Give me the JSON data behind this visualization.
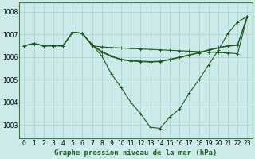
{
  "title": "Graphe pression niveau de la mer (hPa)",
  "bg_color": "#cceaea",
  "grid_color": "#aacece",
  "line_color": "#1a5c1a",
  "xlim": [
    -0.5,
    23.5
  ],
  "ylim": [
    1002.4,
    1008.4
  ],
  "yticks": [
    1003,
    1004,
    1005,
    1006,
    1007,
    1008
  ],
  "xticks": [
    0,
    1,
    2,
    3,
    4,
    5,
    6,
    7,
    8,
    9,
    10,
    11,
    12,
    13,
    14,
    15,
    16,
    17,
    18,
    19,
    20,
    21,
    22,
    23
  ],
  "title_fontsize": 6.5,
  "tick_fontsize": 5.5,
  "series": {
    "dip": [
      1006.5,
      1006.6,
      1006.5,
      1006.5,
      1006.5,
      1007.1,
      1007.05,
      1006.55,
      1006.05,
      1005.25,
      1004.65,
      1004.0,
      1003.5,
      1002.9,
      1002.85,
      1003.35,
      1003.7,
      1004.4,
      1005.0,
      1005.65,
      1006.3,
      1007.05,
      1007.55,
      1007.8
    ],
    "flat": [
      1006.5,
      1006.6,
      1006.5,
      1006.5,
      1006.5,
      1007.1,
      1007.05,
      1006.5,
      1006.45,
      1006.42,
      1006.4,
      1006.38,
      1006.36,
      1006.34,
      1006.32,
      1006.3,
      1006.28,
      1006.26,
      1006.24,
      1006.22,
      1006.2,
      1006.18,
      1006.15,
      1007.8
    ],
    "mid1": [
      1006.5,
      1006.6,
      1006.5,
      1006.5,
      1006.5,
      1007.1,
      1007.05,
      1006.55,
      1006.25,
      1006.05,
      1005.9,
      1005.85,
      1005.82,
      1005.8,
      1005.82,
      1005.9,
      1006.0,
      1006.1,
      1006.2,
      1006.32,
      1006.42,
      1006.5,
      1006.55,
      1007.8
    ],
    "mid2": [
      1006.5,
      1006.6,
      1006.5,
      1006.5,
      1006.5,
      1007.1,
      1007.05,
      1006.52,
      1006.22,
      1006.02,
      1005.88,
      1005.82,
      1005.8,
      1005.78,
      1005.8,
      1005.88,
      1005.98,
      1006.08,
      1006.18,
      1006.3,
      1006.4,
      1006.48,
      1006.52,
      1007.8
    ]
  }
}
